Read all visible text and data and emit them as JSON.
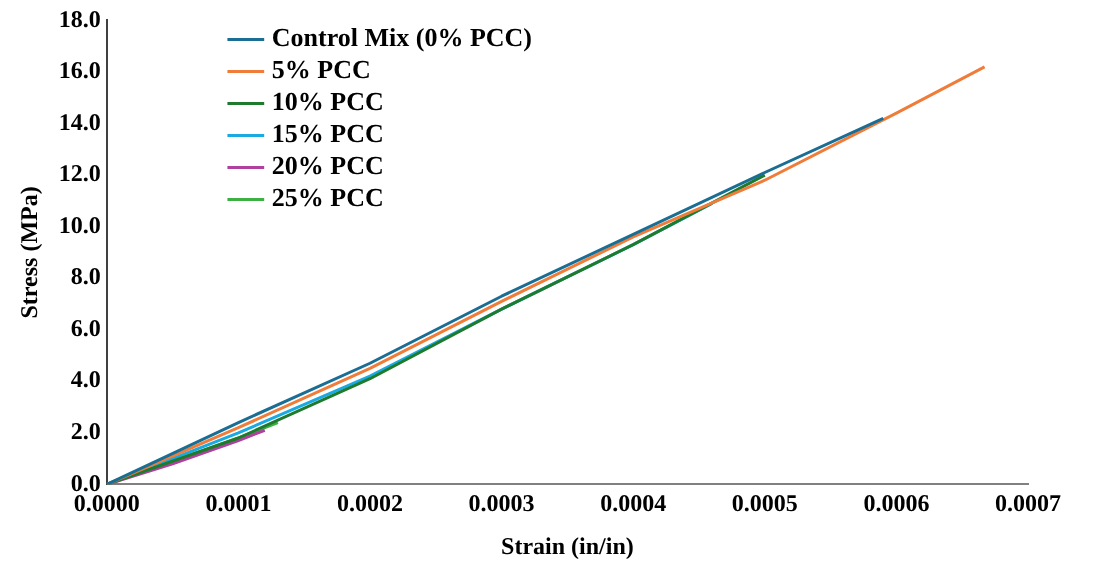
{
  "chart_data": {
    "type": "line",
    "xlabel": "Strain (in/in)",
    "ylabel": "Stress (MPa)",
    "xlim": [
      0,
      0.0007
    ],
    "xticks": [
      {
        "value": 0,
        "label": "0.0000"
      },
      {
        "value": 0.0001,
        "label": "0.0001"
      },
      {
        "value": 0.0002,
        "label": "0.0002"
      },
      {
        "value": 0.0003,
        "label": "0.0003"
      },
      {
        "value": 0.0004,
        "label": "0.0004"
      },
      {
        "value": 0.0005,
        "label": "0.0005"
      },
      {
        "value": 0.0006,
        "label": "0.0006"
      },
      {
        "value": 0.0007,
        "label": "0.0007"
      }
    ],
    "ylim": [
      0,
      18
    ],
    "yticks": [
      {
        "value": 0,
        "label": "0.0"
      },
      {
        "value": 2,
        "label": "2.0"
      },
      {
        "value": 4,
        "label": "4.0"
      },
      {
        "value": 6,
        "label": "6.0"
      },
      {
        "value": 8,
        "label": "8.0"
      },
      {
        "value": 10,
        "label": "10.0"
      },
      {
        "value": 12,
        "label": "12.0"
      },
      {
        "value": 14,
        "label": "14.0"
      },
      {
        "value": 16,
        "label": "16.0"
      },
      {
        "value": 18,
        "label": "18.0"
      }
    ],
    "grid": false,
    "legend": "top left",
    "marker": "none",
    "line_style": "solid",
    "series": [
      {
        "name": "Control Mix (0% PCC)",
        "color": "#1b6e93",
        "x": [
          0,
          0.0001,
          0.0002,
          0.0003,
          0.0004,
          0.0005,
          0.00059
        ],
        "values": [
          0,
          2.4,
          4.7,
          7.3,
          9.7,
          12.1,
          14.2
        ]
      },
      {
        "name": "5% PCC",
        "color": "#f07c3a",
        "x": [
          0,
          0.0001,
          0.0002,
          0.0003,
          0.0004,
          0.0005,
          0.0006,
          0.000667
        ],
        "values": [
          0,
          2.2,
          4.5,
          7.1,
          9.6,
          11.8,
          14.4,
          16.2
        ]
      },
      {
        "name": "10% PCC",
        "color": "#1e7b2e",
        "x": [
          0,
          0.0001,
          0.0002,
          0.0003,
          0.0004,
          0.0005
        ],
        "values": [
          0,
          1.8,
          4.1,
          6.8,
          9.3,
          12.0
        ]
      },
      {
        "name": "15% PCC",
        "color": "#1aa9e0",
        "x": [
          0,
          0.0001,
          0.0002,
          0.0003,
          0.0004,
          0.00046
        ],
        "values": [
          0,
          2.0,
          4.2,
          6.8,
          9.3,
          10.9
        ]
      },
      {
        "name": "20% PCC",
        "color": "#b040a0",
        "x": [
          0,
          5e-05,
          0.0001,
          0.00012
        ],
        "values": [
          0,
          0.8,
          1.7,
          2.1
        ]
      },
      {
        "name": "25% PCC",
        "color": "#3cb043",
        "x": [
          0,
          0.0001,
          0.00013
        ],
        "values": [
          0,
          1.8,
          2.4
        ]
      }
    ]
  }
}
